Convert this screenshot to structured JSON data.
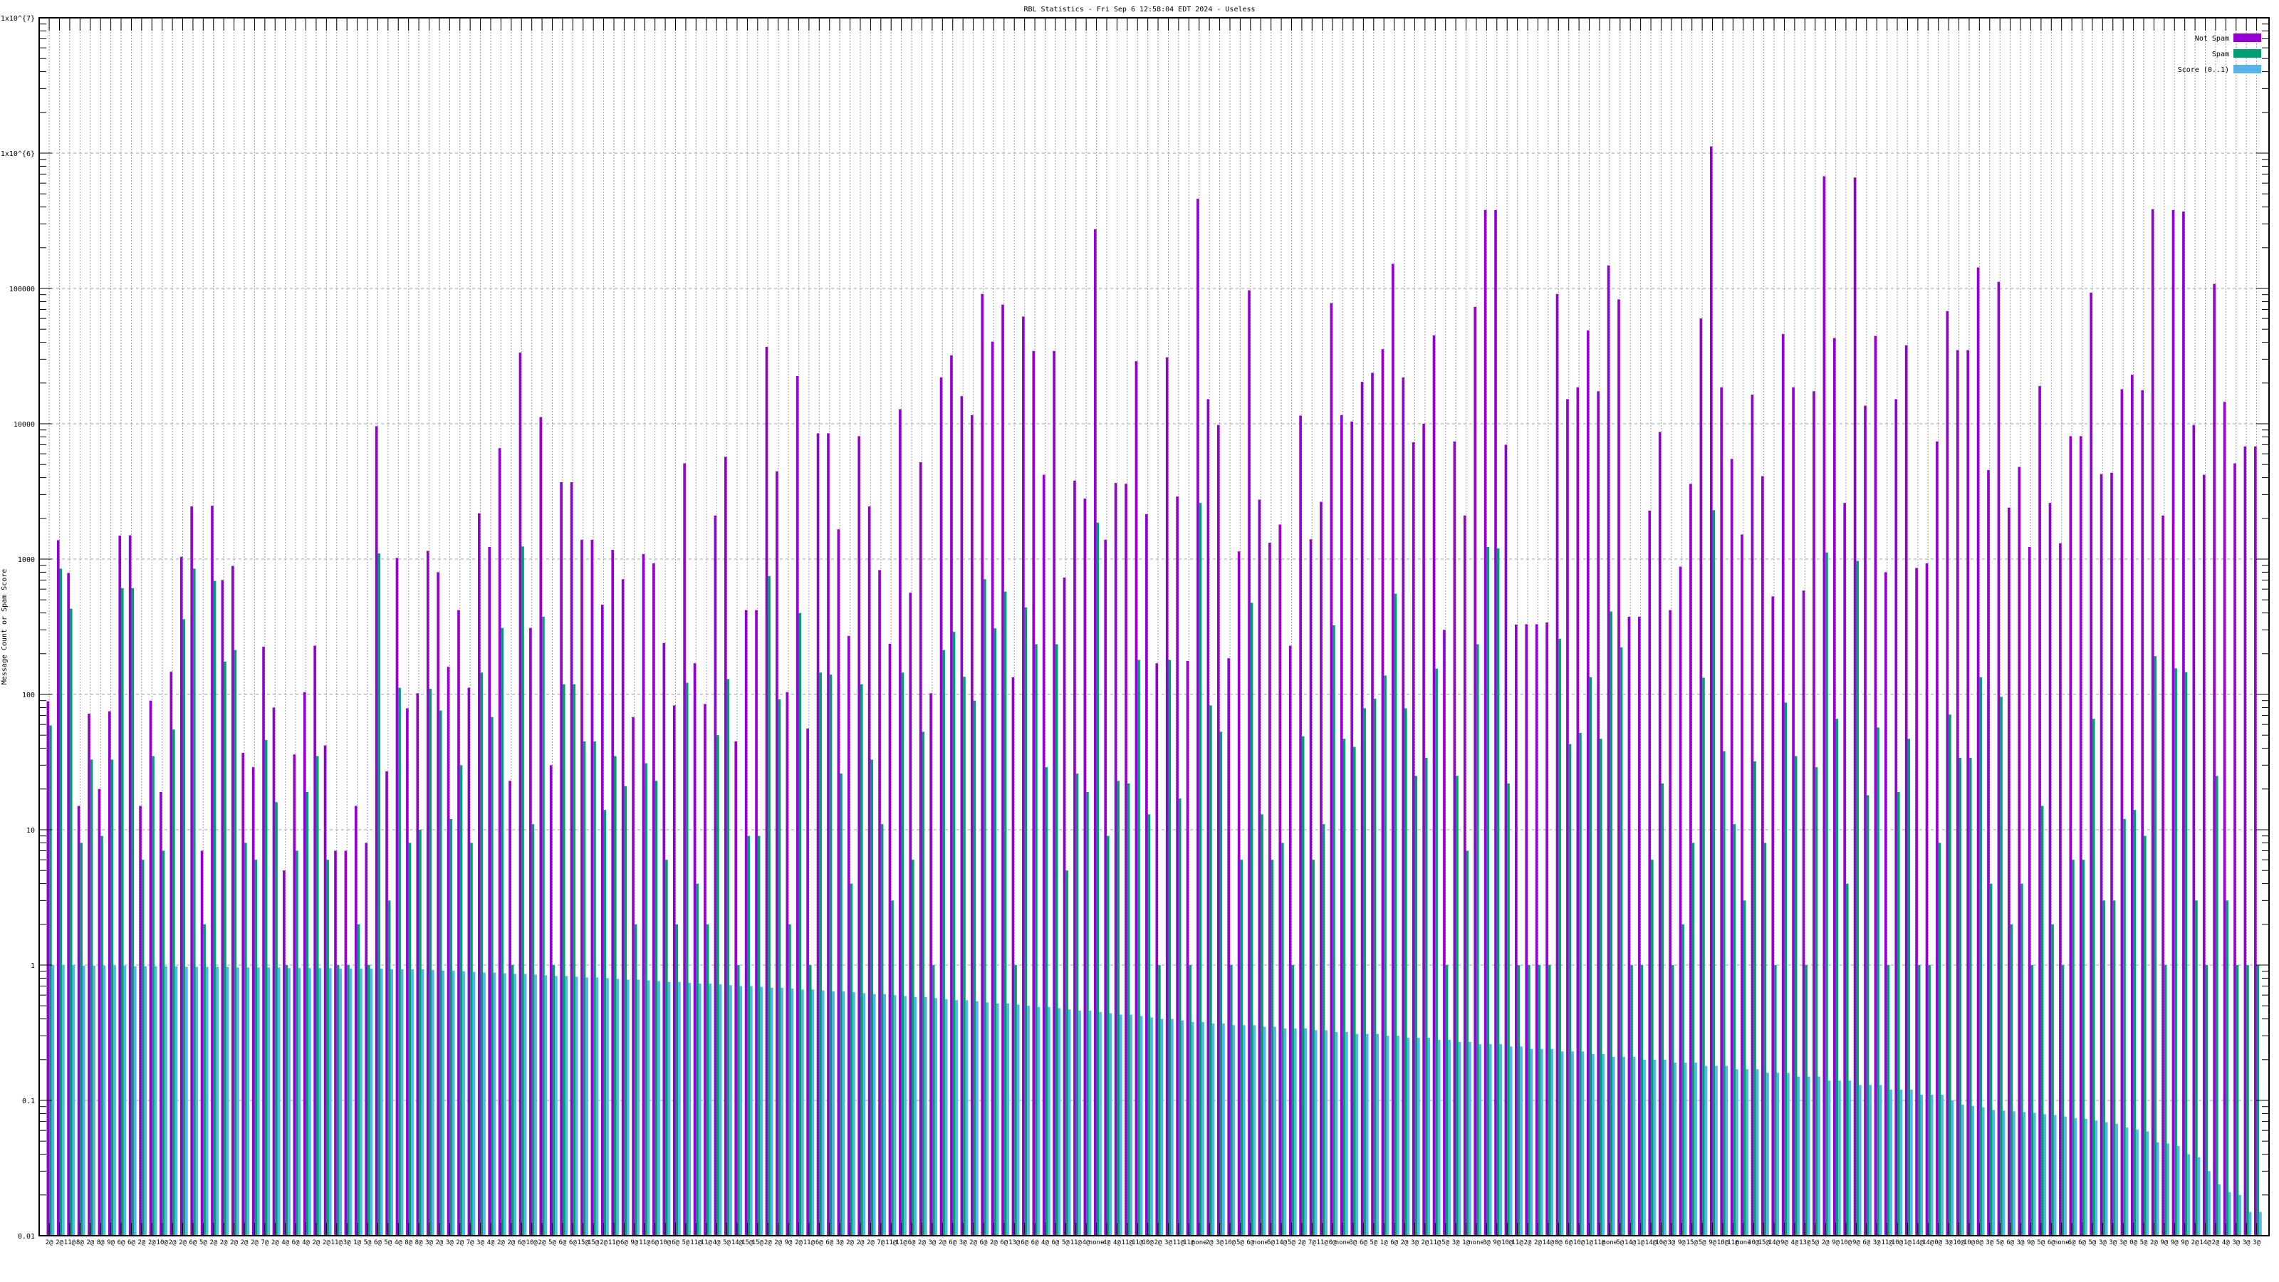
{
  "chart_data": {
    "type": "bar",
    "title": "RBL Statistics - Fri Sep  6 12:58:04 EDT 2024 - Useless",
    "xlabel": "",
    "ylabel": "Message Count or Spam Score",
    "yscale": "log",
    "ylim": [
      0.01,
      10000000
    ],
    "yticks": [
      {
        "value": 10000000,
        "label": "1x10^{7}"
      },
      {
        "value": 1000000,
        "label": "1x10^{6}"
      },
      {
        "value": 100000,
        "label": "100000"
      },
      {
        "value": 10000,
        "label": "10000"
      },
      {
        "value": 1000,
        "label": "1000"
      },
      {
        "value": 100,
        "label": "100"
      },
      {
        "value": 10,
        "label": "10"
      },
      {
        "value": 1,
        "label": "1"
      },
      {
        "value": 0.1,
        "label": "0.1"
      },
      {
        "value": 0.01,
        "label": "0.01"
      }
    ],
    "grid": true,
    "legend_position": "top-right",
    "categories": [
      "2@",
      "2@",
      "11@",
      "8@",
      "2@",
      "8@",
      "9@",
      "6@",
      "6@",
      "2@",
      "2@",
      "10@",
      "2@",
      "2@",
      "6@",
      "5@",
      "2@",
      "2@",
      "2@",
      "2@",
      "2@",
      "7@",
      "2@",
      "4@",
      "6@",
      "4@",
      "2@",
      "2@",
      "11@",
      "3@",
      "1@",
      "5@",
      "6@",
      "5@",
      "4@",
      "8@",
      "8@",
      "3@",
      "2@",
      "3@",
      "2@",
      "7@",
      "3@",
      "4@",
      "2@",
      "2@",
      "6@",
      "10@",
      "2@",
      "5@",
      "6@",
      "6@",
      "15@",
      "15@",
      "2@",
      "11@",
      "6@",
      "9@",
      "11@",
      "6@",
      "10@",
      "6@",
      "5@",
      "11@",
      "11@",
      "4@",
      "5@",
      "14@",
      "15@",
      "15@",
      "2@",
      "2@",
      "9@",
      "2@",
      "11@",
      "6@",
      "6@",
      "3@",
      "2@",
      "2@",
      "2@",
      "7@",
      "11@",
      "11@",
      "6@",
      "2@",
      "3@",
      "2@",
      "6@",
      "3@",
      "2@",
      "6@",
      "2@",
      "6@",
      "13@",
      "6@",
      "6@",
      "4@",
      "6@",
      "5@",
      "11@",
      "4@",
      "none",
      "4@",
      "4@",
      "11@",
      "11@",
      "10@",
      "2@",
      "3@",
      "11@",
      "11@",
      "none",
      "2@",
      "3@",
      "10@",
      "5@",
      "6@",
      "none",
      "5@",
      "14@",
      "5@",
      "2@",
      "7@",
      "11@",
      "0@",
      "none",
      "3@",
      "6@",
      "5@",
      "1@",
      "6@",
      "2@",
      "3@",
      "2@",
      "11@",
      "5@",
      "3@",
      "1@",
      "none",
      "3@",
      "9@",
      "10@",
      "11@",
      "2@",
      "2@",
      "14@",
      "0@",
      "6@",
      "10@",
      "1@",
      "11@",
      "none",
      "5@",
      "14@",
      "1@",
      "14@",
      "10@",
      "3@",
      "9@",
      "15@",
      "5@",
      "9@",
      "10@",
      "11@",
      "none",
      "10@",
      "15@",
      "14@",
      "9@",
      "4@",
      "13@",
      "5@",
      "2@",
      "9@",
      "10@",
      "9@",
      "6@",
      "3@",
      "11@",
      "10@",
      "1@",
      "14@",
      "14@",
      "0@",
      "3@",
      "10@",
      "10@",
      "0@",
      "3@",
      "5@",
      "6@",
      "3@",
      "9@",
      "5@",
      "6@",
      "none",
      "6@",
      "6@",
      "5@",
      "3@",
      "3@",
      "3@",
      "0@",
      "5@",
      "2@",
      "9@",
      "9@",
      "9@",
      "2@",
      "14@",
      "2@",
      "4@",
      "3@",
      "3@",
      "3@"
    ],
    "series": [
      {
        "name": "Not Spam",
        "color": "#9400D3",
        "values": [
          89,
          1380,
          790,
          15,
          72,
          20,
          75,
          1490,
          1500,
          15,
          90,
          19,
          147,
          1040,
          2450,
          7,
          2480,
          700,
          890,
          37,
          29,
          225,
          80,
          5,
          36,
          104,
          229,
          42,
          7,
          7,
          15,
          8,
          9600,
          27,
          1020,
          79,
          102,
          1150,
          800,
          160,
          420,
          112,
          2180,
          1230,
          6600,
          23,
          33600,
          310,
          11200,
          30,
          3700,
          3700,
          1390,
          1390,
          460,
          1170,
          710,
          68,
          1090,
          930,
          240,
          83,
          5100,
          170,
          85,
          2100,
          5700,
          45,
          420,
          420,
          37000,
          4450,
          104,
          22500,
          56,
          8500,
          8500,
          1660,
          270,
          8100,
          2450,
          830,
          237,
          12800,
          565,
          5200,
          102,
          22000,
          32000,
          16000,
          11600,
          91000,
          40500,
          76000,
          134,
          62000,
          34500,
          4200,
          34500,
          730,
          3800,
          2800,
          274000,
          1390,
          3650,
          3600,
          29000,
          2150,
          170,
          31000,
          2900,
          177,
          460000,
          15200,
          9800,
          185,
          1140,
          97000,
          2750,
          1320,
          1800,
          229,
          11500,
          1400,
          2650,
          78000,
          11600,
          10400,
          20400,
          23800,
          35600,
          152000,
          22000,
          7300,
          10000,
          45000,
          300,
          7400,
          2100,
          73000,
          380000,
          380000,
          7000,
          328,
          330,
          330,
          340,
          91000,
          15200,
          18600,
          49000,
          17400,
          148000,
          83000,
          375,
          375,
          2280,
          8700,
          420,
          880,
          3600,
          60000,
          1120000,
          18600,
          5500,
          1520,
          16400,
          4100,
          530,
          46000,
          18600,
          585,
          17400,
          675000,
          43000,
          2600,
          660000,
          13600,
          44600,
          800,
          15200,
          38000,
          860,
          930,
          7400,
          68000,
          35000,
          35000,
          143000,
          4550,
          112000,
          2400,
          4800,
          1230,
          19000,
          2600,
          1310,
          8100,
          8100,
          93000,
          4250,
          4350,
          18000,
          23000,
          17700,
          385000,
          2100,
          380000,
          370000,
          9800,
          4200,
          108000,
          14500,
          5100,
          6800,
          6800
        ]
      },
      {
        "name": "Spam",
        "color": "#009E73",
        "values": [
          59,
          850,
          430,
          8,
          33,
          9,
          33,
          610,
          610,
          6,
          35,
          7,
          55,
          360,
          850,
          2,
          690,
          175,
          213,
          8,
          6,
          46,
          16,
          1,
          7,
          19,
          35,
          6,
          1,
          1,
          2,
          1,
          1100,
          3,
          112,
          8,
          10,
          110,
          76,
          12,
          30,
          8,
          145,
          68,
          310,
          1,
          1240,
          11,
          375,
          1,
          119,
          119,
          45,
          45,
          14,
          35,
          21,
          2,
          31,
          23,
          6,
          2,
          122,
          4,
          2,
          50,
          130,
          1,
          9,
          9,
          750,
          92,
          2,
          400,
          1,
          145,
          140,
          26,
          4,
          119,
          33,
          11,
          3,
          145,
          6,
          53,
          1,
          213,
          290,
          135,
          90,
          710,
          308,
          575,
          1,
          440,
          235,
          29,
          235,
          5,
          26,
          19,
          1860,
          9,
          23,
          22,
          180,
          13,
          1,
          180,
          17,
          1,
          2600,
          83,
          53,
          1,
          6,
          475,
          13,
          6,
          8,
          1,
          49,
          6,
          11,
          324,
          47,
          41,
          79,
          93,
          138,
          555,
          79,
          25,
          34,
          155,
          1,
          25,
          7,
          235,
          1230,
          1200,
          22,
          1,
          1,
          1,
          1,
          258,
          43,
          52,
          134,
          47,
          410,
          223,
          1,
          1,
          6,
          22,
          1,
          2,
          8,
          133,
          2300,
          38,
          11,
          3,
          32,
          8,
          1,
          87,
          35,
          1,
          29,
          1120,
          66,
          4,
          970,
          18,
          57,
          1,
          19,
          47,
          1,
          1,
          8,
          71,
          34,
          34,
          134,
          4,
          96,
          2,
          4,
          1,
          15,
          2,
          1,
          6,
          6,
          66,
          3,
          3,
          12,
          14,
          9,
          192,
          1,
          156,
          146,
          3,
          1,
          25,
          3,
          1,
          1,
          1
        ]
      },
      {
        "name": "Score (0..1)",
        "color": "#56B4E9",
        "values": [
          1.0,
          1.0,
          1.0,
          0.99,
          0.99,
          0.99,
          0.99,
          0.99,
          0.98,
          0.98,
          0.98,
          0.98,
          0.98,
          0.97,
          0.97,
          0.97,
          0.97,
          0.97,
          0.96,
          0.96,
          0.96,
          0.96,
          0.96,
          0.95,
          0.95,
          0.95,
          0.95,
          0.95,
          0.94,
          0.94,
          0.94,
          0.94,
          0.94,
          0.93,
          0.93,
          0.93,
          0.93,
          0.92,
          0.91,
          0.91,
          0.9,
          0.89,
          0.88,
          0.88,
          0.87,
          0.86,
          0.86,
          0.85,
          0.84,
          0.83,
          0.83,
          0.82,
          0.81,
          0.81,
          0.8,
          0.79,
          0.78,
          0.78,
          0.77,
          0.76,
          0.75,
          0.75,
          0.74,
          0.73,
          0.73,
          0.72,
          0.71,
          0.7,
          0.7,
          0.69,
          0.68,
          0.68,
          0.67,
          0.66,
          0.66,
          0.65,
          0.64,
          0.64,
          0.63,
          0.62,
          0.61,
          0.61,
          0.6,
          0.59,
          0.58,
          0.58,
          0.57,
          0.56,
          0.55,
          0.55,
          0.54,
          0.53,
          0.52,
          0.52,
          0.51,
          0.5,
          0.49,
          0.49,
          0.48,
          0.47,
          0.46,
          0.46,
          0.45,
          0.44,
          0.43,
          0.43,
          0.42,
          0.41,
          0.4,
          0.4,
          0.39,
          0.38,
          0.38,
          0.37,
          0.37,
          0.36,
          0.36,
          0.36,
          0.35,
          0.35,
          0.34,
          0.34,
          0.34,
          0.33,
          0.33,
          0.32,
          0.32,
          0.31,
          0.31,
          0.31,
          0.3,
          0.3,
          0.29,
          0.29,
          0.29,
          0.28,
          0.28,
          0.27,
          0.27,
          0.26,
          0.26,
          0.26,
          0.25,
          0.25,
          0.24,
          0.24,
          0.24,
          0.23,
          0.23,
          0.23,
          0.22,
          0.22,
          0.21,
          0.21,
          0.21,
          0.2,
          0.2,
          0.2,
          0.19,
          0.19,
          0.19,
          0.18,
          0.18,
          0.18,
          0.17,
          0.17,
          0.17,
          0.16,
          0.16,
          0.16,
          0.15,
          0.15,
          0.15,
          0.14,
          0.14,
          0.14,
          0.13,
          0.13,
          0.13,
          0.12,
          0.12,
          0.12,
          0.11,
          0.11,
          0.11,
          0.1,
          0.093,
          0.091,
          0.089,
          0.085,
          0.084,
          0.083,
          0.082,
          0.081,
          0.079,
          0.078,
          0.076,
          0.074,
          0.073,
          0.071,
          0.069,
          0.067,
          0.063,
          0.061,
          0.059,
          0.049,
          0.048,
          0.046,
          0.04,
          0.038,
          0.03,
          0.024,
          0.021,
          0.02,
          0.015,
          0.015
        ]
      }
    ]
  }
}
